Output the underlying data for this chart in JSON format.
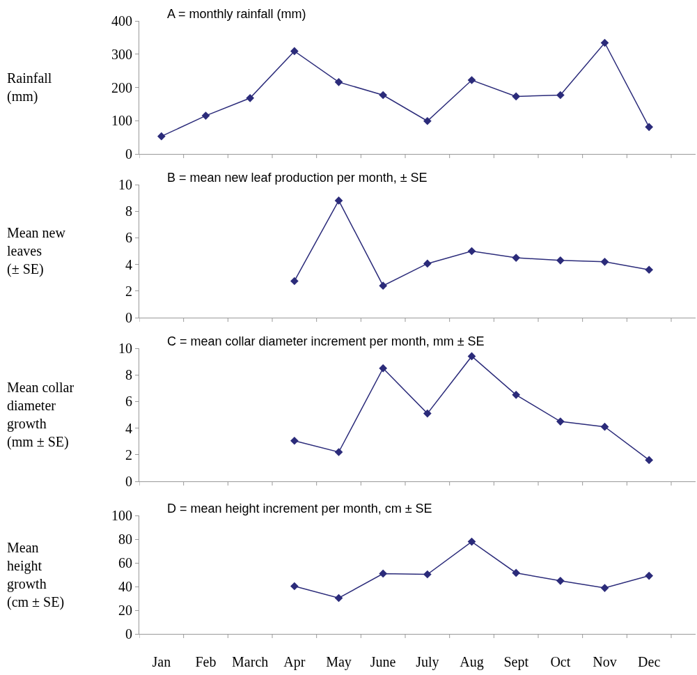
{
  "chart_data": [
    {
      "type": "line",
      "title": "A = monthly rainfall (mm)",
      "ylabel": "Rainfall\n(mm)",
      "categories": [
        null,
        null,
        null,
        null,
        null,
        null,
        null,
        null,
        null,
        null,
        null,
        null
      ],
      "series": [
        {
          "color": "#2b2b7a",
          "values": [
            53,
            115,
            168,
            309,
            216,
            177,
            99,
            222,
            173,
            177,
            334,
            81
          ]
        }
      ],
      "ylim": [
        0,
        400
      ],
      "yticks": [
        0,
        100,
        200,
        300,
        400
      ],
      "grid": false,
      "marker": "diamond",
      "line_style": "solid"
    },
    {
      "type": "line",
      "title": "B = mean new leaf production per month, ± SE",
      "ylabel": "Mean new\nleaves\n(± SE)",
      "categories": [
        null,
        null,
        null,
        null,
        null,
        null,
        null,
        null,
        null,
        null,
        null,
        null
      ],
      "series": [
        {
          "color": "#2b2b7a",
          "values": [
            null,
            null,
            null,
            2.75,
            8.8,
            2.4,
            4.06,
            5.0,
            4.5,
            4.3,
            4.2,
            3.6
          ]
        }
      ],
      "ylim": [
        0,
        10
      ],
      "yticks": [
        0,
        2,
        4,
        6,
        8,
        10
      ],
      "grid": false,
      "marker": "diamond",
      "line_style": "solid"
    },
    {
      "type": "line",
      "title": "C = mean collar diameter increment per month, mm ± SE",
      "ylabel": "Mean collar\ndiameter\ngrowth\n(mm ± SE)",
      "categories": [
        null,
        null,
        null,
        null,
        null,
        null,
        null,
        null,
        null,
        null,
        null,
        null
      ],
      "series": [
        {
          "color": "#2b2b7a",
          "values": [
            null,
            null,
            null,
            3.05,
            2.2,
            8.5,
            5.1,
            9.4,
            6.5,
            4.5,
            4.1,
            1.6
          ]
        }
      ],
      "ylim": [
        0,
        10
      ],
      "yticks": [
        0,
        2,
        4,
        6,
        8,
        10
      ],
      "grid": false,
      "marker": "diamond",
      "line_style": "solid"
    },
    {
      "type": "line",
      "title": "D = mean height increment per month, cm ± SE",
      "ylabel": "Mean\nheight\ngrowth\n(cm ± SE)",
      "categories": [
        "Jan",
        "Feb",
        "March",
        "Apr",
        "May",
        "June",
        "July",
        "Aug",
        "Sept",
        "Oct",
        "Nov",
        "Dec"
      ],
      "series": [
        {
          "color": "#2b2b7a",
          "values": [
            null,
            null,
            null,
            40.3,
            30.3,
            50.9,
            50.3,
            77.9,
            51.5,
            44.8,
            38.8,
            49.1
          ]
        }
      ],
      "ylim": [
        0,
        100
      ],
      "yticks": [
        0,
        20,
        40,
        60,
        80,
        100
      ],
      "grid": false,
      "marker": "diamond",
      "line_style": "solid"
    }
  ]
}
